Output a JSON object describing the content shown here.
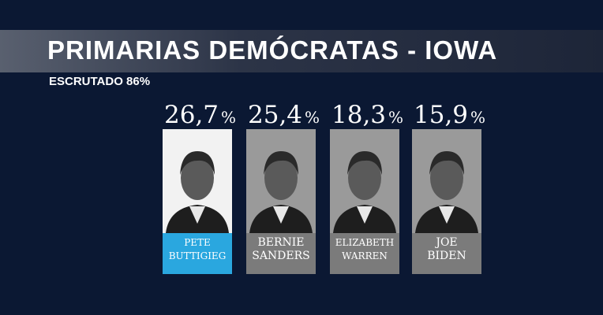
{
  "header": {
    "title": "PRIMARIAS DEMÓCRATAS - IOWA",
    "subtitle": "ESCRUTADO 86%"
  },
  "highlight_color": "#2aa7df",
  "card_color": "#7b7b7b",
  "candidates": [
    {
      "value": "26,7",
      "unit": "%",
      "name": [
        "PETE",
        "BUTTIGIEG"
      ],
      "highlight": true
    },
    {
      "value": "25,4",
      "unit": "%",
      "name": [
        "BERNIE",
        "SANDERS"
      ],
      "highlight": false
    },
    {
      "value": "18,3",
      "unit": "%",
      "name": [
        "ELIZABETH",
        "WARREN"
      ],
      "highlight": false
    },
    {
      "value": "15,9",
      "unit": "%",
      "name": [
        "JOE",
        "BIDEN"
      ],
      "highlight": false
    }
  ]
}
